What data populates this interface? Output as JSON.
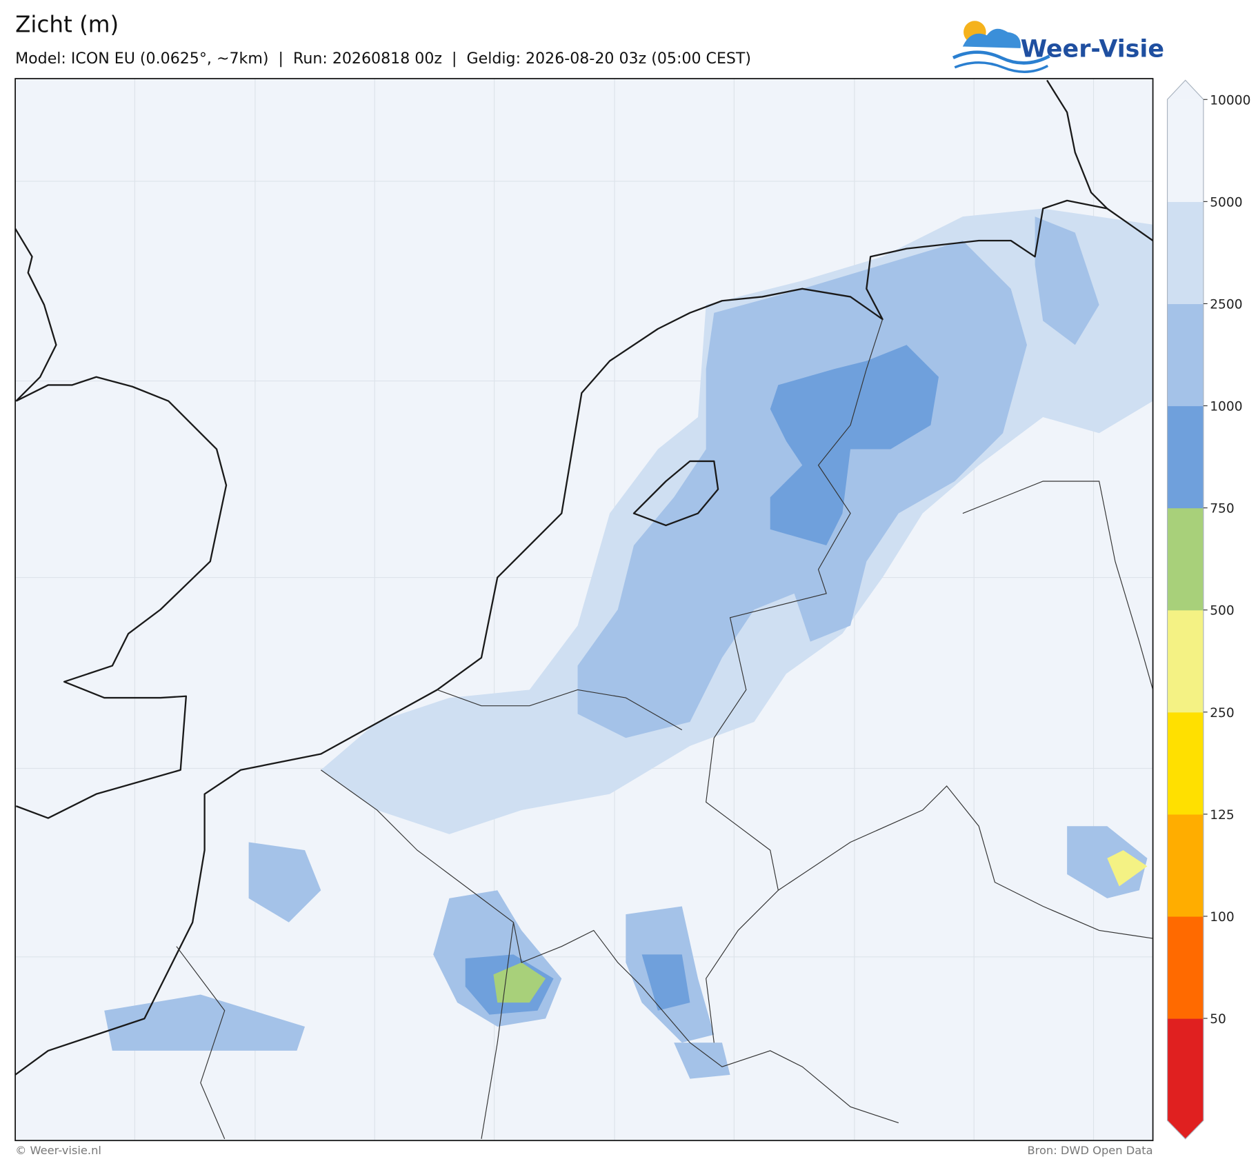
{
  "header": {
    "title": "Zicht (m)",
    "subtitle": "Model: ICON EU (0.0625°, ~7km)  |  Run: 20260818 00z  |  Geldig: 2026-08-20 03z (05:00 CEST)"
  },
  "logo": {
    "text": "Weer-Visie"
  },
  "colorbar": {
    "ticks": [
      50,
      100,
      125,
      250,
      500,
      750,
      1000,
      2500,
      5000,
      10000
    ],
    "colors": [
      "#e02020",
      "#ff6a00",
      "#ffad00",
      "#ffe000",
      "#f4f284",
      "#a8d07a",
      "#6fa0dc",
      "#a4c2e8",
      "#cfdff2",
      "#f0f4fa"
    ],
    "over_color": "#f0f4fa"
  },
  "footer": {
    "left": "© Weer-visie.nl",
    "right": "Bron: DWD Open Data"
  }
}
